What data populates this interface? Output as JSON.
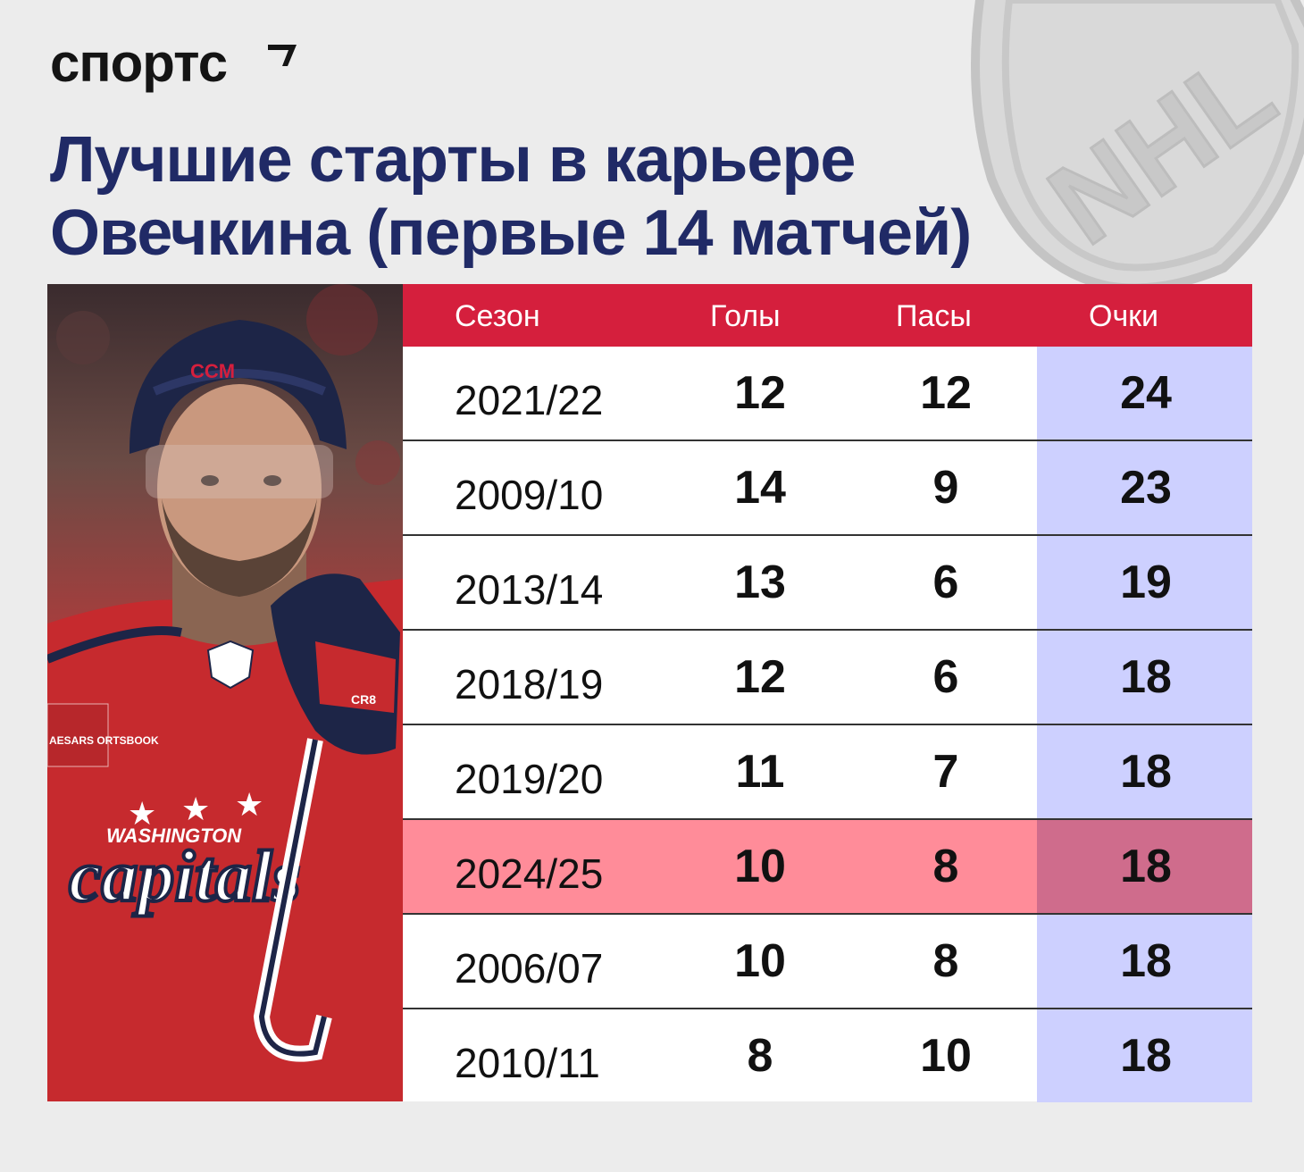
{
  "brand": {
    "name": "спортс"
  },
  "title": {
    "line1": "Лучшие старты в карьере",
    "line2": "Овечкина (первые 14 матчей)"
  },
  "photo": {
    "jersey_text_small": "WASHINGTON",
    "jersey_text_large": "capitals",
    "helmet_text": "CCM",
    "patch_text": "AESARS ORTSBOOK",
    "glove_text": "CR8"
  },
  "colors": {
    "header": "#d51f3d",
    "title": "#202a66",
    "points_column": "#cdd0ff",
    "highlight_row": "#ff8c99",
    "highlight_points": "#cf6c8c"
  },
  "chart_data": {
    "type": "table",
    "columns": [
      "Сезон",
      "Голы",
      "Пасы",
      "Очки"
    ],
    "rows": [
      {
        "season": "2021/22",
        "goals": "12",
        "assists": "12",
        "points": "24",
        "highlight": false
      },
      {
        "season": "2009/10",
        "goals": "14",
        "assists": "9",
        "points": "23",
        "highlight": false
      },
      {
        "season": "2013/14",
        "goals": "13",
        "assists": "6",
        "points": "19",
        "highlight": false
      },
      {
        "season": "2018/19",
        "goals": "12",
        "assists": "6",
        "points": "18",
        "highlight": false
      },
      {
        "season": "2019/20",
        "goals": "11",
        "assists": "7",
        "points": "18",
        "highlight": false
      },
      {
        "season": "2024/25",
        "goals": "10",
        "assists": "8",
        "points": "18",
        "highlight": true
      },
      {
        "season": "2006/07",
        "goals": "10",
        "assists": "8",
        "points": "18",
        "highlight": false
      },
      {
        "season": "2010/11",
        "goals": "8",
        "assists": "10",
        "points": "18",
        "highlight": false
      }
    ]
  }
}
